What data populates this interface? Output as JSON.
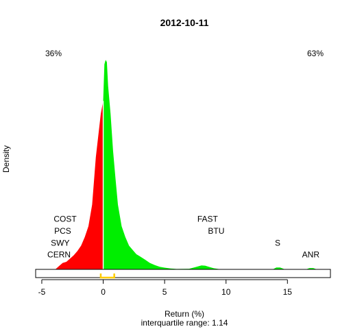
{
  "chart_data": {
    "type": "area",
    "title": "2012-10-11",
    "xlabel": "Return (%)",
    "ylabel": "Density",
    "subtitle": "interquartile range: 1.14",
    "xlim": [
      -5.5,
      18.5
    ],
    "ylim": [
      0,
      1.0
    ],
    "x_ticks": [
      -5,
      0,
      5,
      10,
      15
    ],
    "pct_negative": "36%",
    "pct_positive": "63%",
    "colors": {
      "negative": "#ff0000",
      "positive": "#00ee00",
      "negative_text": "#e41a1c",
      "positive_text": "#1a9a1a",
      "iqr": "#ffcc00"
    },
    "interquartile_range": {
      "from": -0.2,
      "to": 0.9
    },
    "density": {
      "x": [
        -3.9,
        -3.6,
        -3.3,
        -3.0,
        -2.7,
        -2.4,
        -2.1,
        -1.8,
        -1.5,
        -1.2,
        -0.9,
        -0.6,
        -0.4,
        -0.2,
        0.0,
        0.1,
        0.2,
        0.3,
        0.4,
        0.6,
        0.8,
        1.0,
        1.2,
        1.5,
        1.8,
        2.1,
        2.4,
        2.7,
        3.0,
        3.4,
        3.8,
        4.2,
        4.6,
        5.0,
        5.5,
        6.0,
        7.0,
        7.6,
        8.0,
        8.3,
        8.6,
        9.0,
        9.5,
        10.5,
        12.0,
        13.8,
        14.1,
        14.4,
        14.8,
        15.5,
        16.5,
        16.8,
        17.1,
        17.4
      ],
      "y": [
        0.0,
        0.015,
        0.03,
        0.035,
        0.05,
        0.065,
        0.085,
        0.11,
        0.15,
        0.2,
        0.3,
        0.52,
        0.62,
        0.72,
        0.78,
        0.95,
        0.97,
        0.96,
        0.85,
        0.72,
        0.55,
        0.42,
        0.3,
        0.2,
        0.15,
        0.11,
        0.09,
        0.07,
        0.06,
        0.045,
        0.03,
        0.02,
        0.012,
        0.008,
        0.004,
        0.002,
        0.003,
        0.012,
        0.018,
        0.017,
        0.012,
        0.005,
        0.001,
        0.0,
        0.0,
        0.0,
        0.009,
        0.009,
        0.0,
        0.0,
        0.0,
        0.006,
        0.006,
        0.0
      ]
    },
    "annotations": [
      {
        "text": "COST",
        "x": -3.1,
        "y": 0.22
      },
      {
        "text": "PCS",
        "x": -3.3,
        "y": 0.165
      },
      {
        "text": "SWY",
        "x": -3.5,
        "y": 0.11
      },
      {
        "text": "CERN",
        "x": -3.6,
        "y": 0.055
      },
      {
        "text": "FAST",
        "x": 8.5,
        "y": 0.22
      },
      {
        "text": "BTU",
        "x": 9.2,
        "y": 0.165
      },
      {
        "text": "S",
        "x": 14.2,
        "y": 0.11
      },
      {
        "text": "ANR",
        "x": 16.9,
        "y": 0.055
      }
    ]
  }
}
